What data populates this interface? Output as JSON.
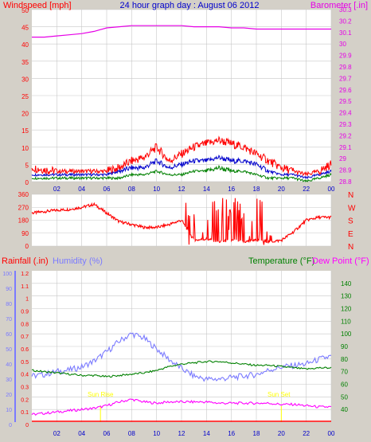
{
  "colors": {
    "background": "#d4d0c8",
    "plot_bg": "#ffffff",
    "wind": "#ff0000",
    "wind_avg": "#0000cc",
    "wind_low": "#008000",
    "barometer": "#e600e6",
    "direction": "#ff0000",
    "rainfall": "#ff0000",
    "humidity": "#7b7bff",
    "temperature": "#008000",
    "dewpoint": "#ff00ff",
    "sun": "#ffff00",
    "grid": "#c8c8c8"
  },
  "header": {
    "windspeed_label": "Windspeed [mph]",
    "title": "24 hour graph day : August 06 2012",
    "barometer_label": "Barometer [.in]"
  },
  "lower_labels": {
    "rainfall": "Rainfall (.in)",
    "humidity": "Humidity (%)",
    "temperature": "Temperature (°F)",
    "dewpoint": "Dew Point (°F)"
  },
  "sun": {
    "rise": "Sun Rise",
    "set": "Sun Set"
  },
  "chart_data": [
    {
      "type": "line",
      "panel": "wind-barometer",
      "x_ticks": [
        "02",
        "04",
        "06",
        "08",
        "10",
        "12",
        "14",
        "16",
        "18",
        "20",
        "22",
        "00"
      ],
      "ylabel_left": "Windspeed [mph]",
      "ylabel_right": "Barometer [.in]",
      "ylim_left": [
        0,
        50
      ],
      "yticks_left": [
        0,
        5,
        10,
        15,
        20,
        25,
        30,
        35,
        40,
        45,
        50
      ],
      "ylim_right": [
        28.8,
        30.3
      ],
      "yticks_right": [
        "28.8",
        "28.9",
        "29",
        "29.1",
        "29.2",
        "29.3",
        "29.4",
        "29.5",
        "29.6",
        "29.7",
        "29.8",
        "29.9",
        "30",
        "30.1",
        "30.2",
        "30.3"
      ],
      "series": [
        {
          "key": "wind_max",
          "hours": [
            0,
            2,
            4,
            6,
            7,
            8,
            9,
            10,
            11,
            12,
            13,
            14,
            15,
            16,
            17,
            18,
            19,
            20,
            21,
            22,
            23,
            24
          ],
          "values": [
            4,
            3,
            3,
            3,
            4,
            6,
            7,
            10,
            6,
            8,
            10,
            11,
            12,
            11,
            10,
            8,
            6,
            4,
            3,
            2,
            3,
            5
          ]
        },
        {
          "key": "wind_avg",
          "hours": [
            0,
            2,
            4,
            6,
            7,
            8,
            9,
            10,
            11,
            12,
            13,
            14,
            15,
            16,
            17,
            18,
            19,
            20,
            21,
            22,
            23,
            24
          ],
          "values": [
            2,
            2,
            2,
            2,
            3,
            4,
            4,
            6,
            4,
            5,
            6,
            6,
            7,
            6,
            6,
            5,
            3,
            2,
            2,
            1,
            2,
            3
          ]
        },
        {
          "key": "wind_min",
          "hours": [
            0,
            2,
            4,
            6,
            7,
            8,
            9,
            10,
            11,
            12,
            13,
            14,
            15,
            16,
            17,
            18,
            19,
            20,
            21,
            22,
            23,
            24
          ],
          "values": [
            1,
            1,
            1,
            1,
            1,
            2,
            2,
            3,
            2,
            2,
            3,
            3,
            4,
            3,
            3,
            2,
            1,
            1,
            1,
            0,
            1,
            2
          ]
        },
        {
          "key": "barometer",
          "hours": [
            0,
            1,
            2,
            3,
            4,
            5,
            6,
            7,
            8,
            9,
            10,
            11,
            12,
            13,
            14,
            15,
            16,
            17,
            18,
            19,
            20,
            21,
            22,
            23,
            24
          ],
          "values": [
            30.06,
            30.06,
            30.07,
            30.08,
            30.09,
            30.11,
            30.14,
            30.15,
            30.16,
            30.16,
            30.16,
            30.16,
            30.16,
            30.15,
            30.15,
            30.15,
            30.14,
            30.14,
            30.13,
            30.13,
            30.13,
            30.13,
            30.13,
            30.13,
            30.13
          ]
        }
      ]
    },
    {
      "type": "line",
      "panel": "wind-direction",
      "x_ticks": [
        "02",
        "04",
        "06",
        "08",
        "10",
        "12",
        "14",
        "16",
        "18",
        "20",
        "22",
        "00"
      ],
      "ylim": [
        0,
        360
      ],
      "yticks": [
        0,
        90,
        180,
        270,
        360
      ],
      "direction_labels": [
        "N",
        "W",
        "S",
        "E",
        "N"
      ],
      "series": [
        {
          "key": "direction",
          "hours": [
            0,
            1,
            2,
            3,
            4,
            5,
            6,
            7,
            8,
            9,
            10,
            11,
            12,
            13,
            14,
            15,
            16,
            17,
            18,
            19,
            20,
            21,
            22,
            23,
            24
          ],
          "values": [
            230,
            240,
            250,
            255,
            270,
            290,
            230,
            170,
            150,
            130,
            130,
            150,
            180,
            40,
            50,
            30,
            40,
            30,
            40,
            30,
            40,
            100,
            180,
            200,
            200
          ]
        }
      ]
    },
    {
      "type": "line",
      "panel": "rain-humidity-temperature",
      "x_ticks": [
        "02",
        "04",
        "06",
        "08",
        "10",
        "12",
        "14",
        "16",
        "18",
        "20",
        "22",
        "00"
      ],
      "ylim_rain": [
        0,
        1.2
      ],
      "yticks_rain": [
        "0",
        "0.1",
        "0.2",
        "0.3",
        "0.4",
        "0.5",
        "0.6",
        "0.7",
        "0.8",
        "0.9",
        "1",
        "1.1",
        "1.2"
      ],
      "ylim_humidity": [
        0,
        100
      ],
      "yticks_humidity": [
        0,
        10,
        20,
        30,
        40,
        50,
        60,
        70,
        80,
        90,
        100
      ],
      "ylim_temp": [
        30,
        150
      ],
      "yticks_temp": [
        40,
        50,
        60,
        70,
        80,
        90,
        100,
        110,
        120,
        130,
        140
      ],
      "series": [
        {
          "key": "rainfall",
          "hours": [
            0,
            24
          ],
          "values": [
            0,
            0
          ]
        },
        {
          "key": "humidity",
          "hours": [
            0,
            1,
            2,
            3,
            4,
            5,
            6,
            7,
            8,
            9,
            10,
            11,
            12,
            13,
            14,
            15,
            16,
            17,
            18,
            19,
            20,
            21,
            22,
            23,
            24
          ],
          "values": [
            32,
            33,
            35,
            36,
            38,
            42,
            48,
            55,
            60,
            57,
            50,
            43,
            37,
            32,
            30,
            30,
            31,
            32,
            33,
            36,
            38,
            39,
            40,
            43,
            45
          ]
        },
        {
          "key": "temperature",
          "hours": [
            0,
            1,
            2,
            3,
            4,
            5,
            6,
            7,
            8,
            9,
            10,
            11,
            12,
            13,
            14,
            15,
            16,
            17,
            18,
            19,
            20,
            21,
            22,
            23,
            24
          ],
          "values": [
            71,
            70,
            69,
            68,
            67,
            67,
            66,
            67,
            68,
            69,
            71,
            74,
            76,
            77,
            78,
            78,
            77,
            76,
            75,
            75,
            74,
            73,
            72,
            73,
            73
          ]
        },
        {
          "key": "dewpoint",
          "hours": [
            0,
            1,
            2,
            3,
            4,
            5,
            6,
            7,
            8,
            9,
            10,
            11,
            12,
            13,
            14,
            15,
            16,
            17,
            18,
            19,
            20,
            21,
            22,
            23,
            24
          ],
          "values": [
            36,
            37,
            38,
            39,
            40,
            41,
            43,
            46,
            48,
            46,
            45,
            46,
            46,
            46,
            46,
            45,
            45,
            45,
            45,
            45,
            44,
            44,
            43,
            42,
            42
          ]
        }
      ],
      "sun_rise_hour": 5.5,
      "sun_set_hour": 20.0
    }
  ]
}
